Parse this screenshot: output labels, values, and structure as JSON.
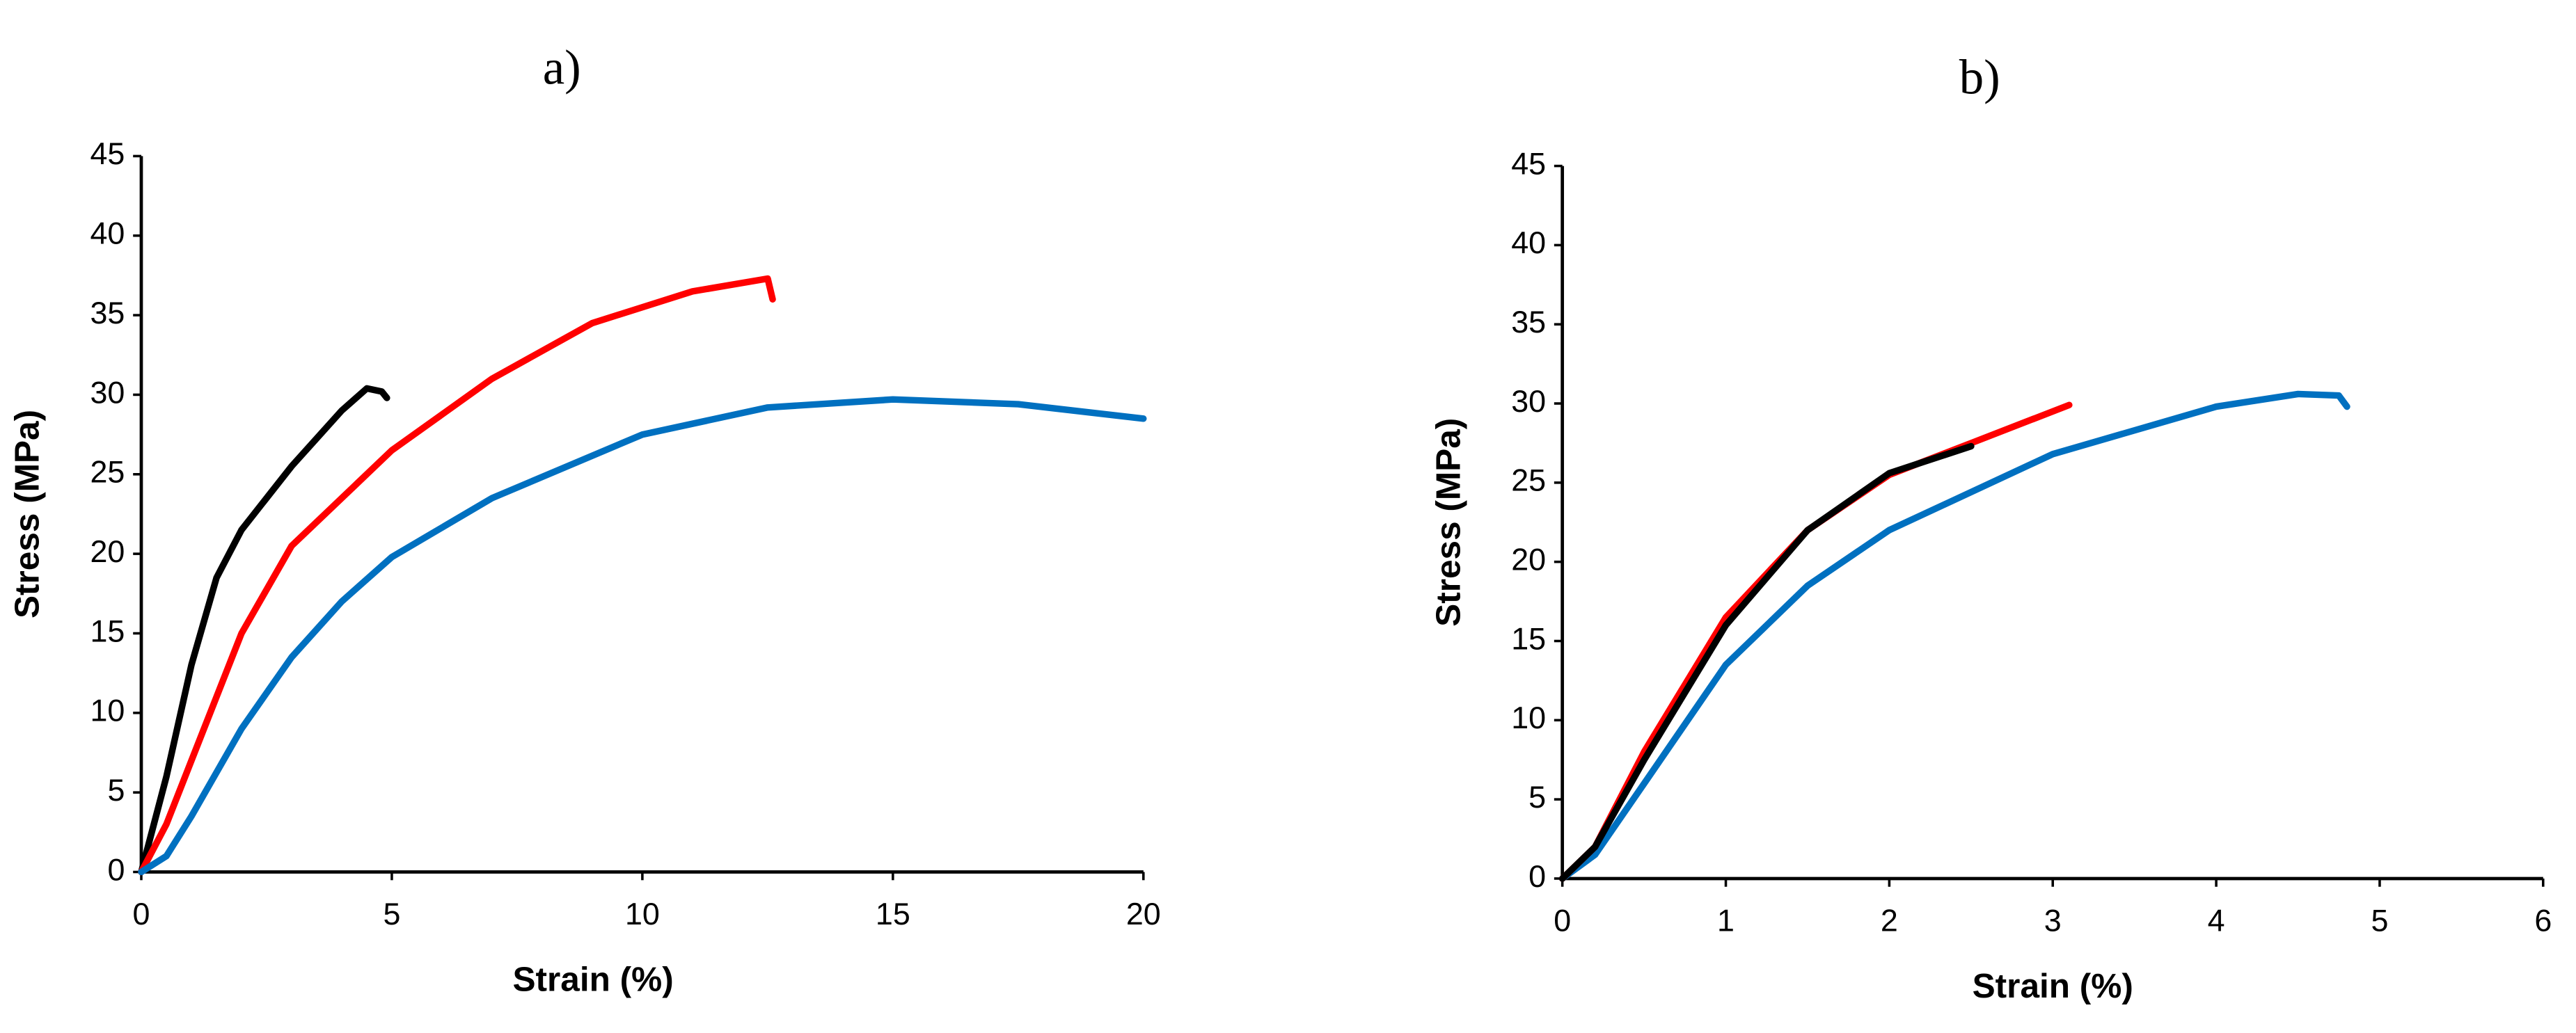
{
  "chart_data": [
    {
      "type": "line",
      "title": "a)",
      "x_label": "Strain (%)",
      "y_label": "Stress (MPa)",
      "label_color": "#666666",
      "xlim": [
        0,
        20
      ],
      "xticks": [
        0,
        5,
        10,
        15,
        20
      ],
      "ylim": [
        0,
        45
      ],
      "yticks": [
        0,
        5,
        10,
        15,
        20,
        25,
        30,
        35,
        40,
        45
      ],
      "series": [
        {
          "color": "#000000",
          "x": [
            0,
            0.5,
            1,
            1.5,
            2,
            3,
            4,
            4.5,
            4.8,
            4.9
          ],
          "values": [
            0,
            6,
            13,
            18.5,
            21.5,
            25.5,
            29,
            30.4,
            30.2,
            29.8
          ]
        },
        {
          "color": "#ff0000",
          "x": [
            0,
            0.5,
            1,
            2,
            3,
            5,
            7,
            9,
            11,
            12.5,
            12.6
          ],
          "values": [
            0,
            3,
            7,
            15,
            20.5,
            26.5,
            31,
            34.5,
            36.5,
            37.3,
            36
          ]
        },
        {
          "color": "#0070c0",
          "x": [
            0,
            0.5,
            1,
            2,
            3,
            4,
            5,
            7,
            10,
            12.5,
            15,
            17.5,
            20
          ],
          "values": [
            0,
            1,
            3.5,
            9,
            13.5,
            17,
            19.8,
            23.5,
            27.5,
            29.2,
            29.7,
            29.4,
            28.5
          ]
        }
      ]
    },
    {
      "type": "line",
      "title": "b)",
      "x_label": "Strain (%)",
      "y_label": "Stress (MPa)",
      "label_color": "#000000",
      "xlim": [
        0,
        6
      ],
      "xticks": [
        0,
        1,
        2,
        3,
        4,
        5,
        6
      ],
      "ylim": [
        0,
        45
      ],
      "yticks": [
        0,
        5,
        10,
        15,
        20,
        25,
        30,
        35,
        40,
        45
      ],
      "series": [
        {
          "color": "#0070c0",
          "x": [
            0,
            0.2,
            0.5,
            1,
            1.5,
            2,
            3,
            4,
            4.5,
            4.75,
            4.8
          ],
          "values": [
            0,
            1.5,
            6,
            13.5,
            18.5,
            22,
            26.8,
            29.8,
            30.6,
            30.5,
            29.8
          ]
        },
        {
          "color": "#ff0000",
          "x": [
            0,
            0.2,
            0.5,
            1,
            1.5,
            2,
            2.5,
            3.1
          ],
          "values": [
            0,
            2,
            8,
            16.5,
            22,
            25.5,
            27.5,
            29.9
          ]
        },
        {
          "color": "#000000",
          "x": [
            0,
            0.2,
            0.5,
            1,
            1.5,
            2,
            2.5
          ],
          "values": [
            0,
            2,
            7.5,
            16,
            22,
            25.6,
            27.3
          ]
        }
      ]
    }
  ]
}
